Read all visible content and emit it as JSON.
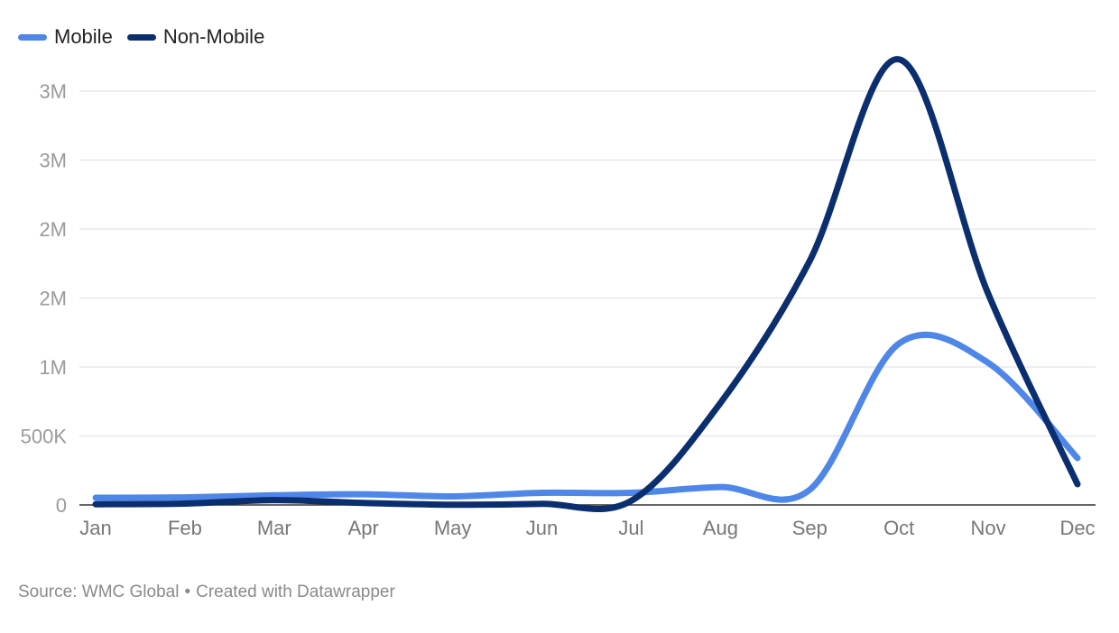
{
  "chart_data": {
    "type": "line",
    "categories": [
      "Jan",
      "Feb",
      "Mar",
      "Apr",
      "May",
      "Jun",
      "Jul",
      "Aug",
      "Sep",
      "Oct",
      "Nov",
      "Dec"
    ],
    "y_ticks": [
      {
        "value": 0,
        "label": "0"
      },
      {
        "value": 500000,
        "label": "500K"
      },
      {
        "value": 1000000,
        "label": "1M"
      },
      {
        "value": 1500000,
        "label": "2M"
      },
      {
        "value": 2000000,
        "label": "2M"
      },
      {
        "value": 2500000,
        "label": "3M"
      },
      {
        "value": 3000000,
        "label": "3M"
      }
    ],
    "ylim": [
      0,
      3000000
    ],
    "grid": true,
    "legend_position": "top-left",
    "series": [
      {
        "name": "Mobile",
        "color": "#4f87e8",
        "values": [
          52000,
          55000,
          70000,
          78000,
          62000,
          88000,
          88000,
          130000,
          110000,
          1170000,
          1030000,
          340000
        ]
      },
      {
        "name": "Non-Mobile",
        "color": "#0b2e6e",
        "values": [
          5000,
          10000,
          35000,
          15000,
          2000,
          8000,
          30000,
          740000,
          1770000,
          3230000,
          1530000,
          150000
        ]
      }
    ]
  },
  "footer": {
    "source": "Source: WMC Global",
    "separator": "•",
    "credit": "Created with Datawrapper"
  }
}
